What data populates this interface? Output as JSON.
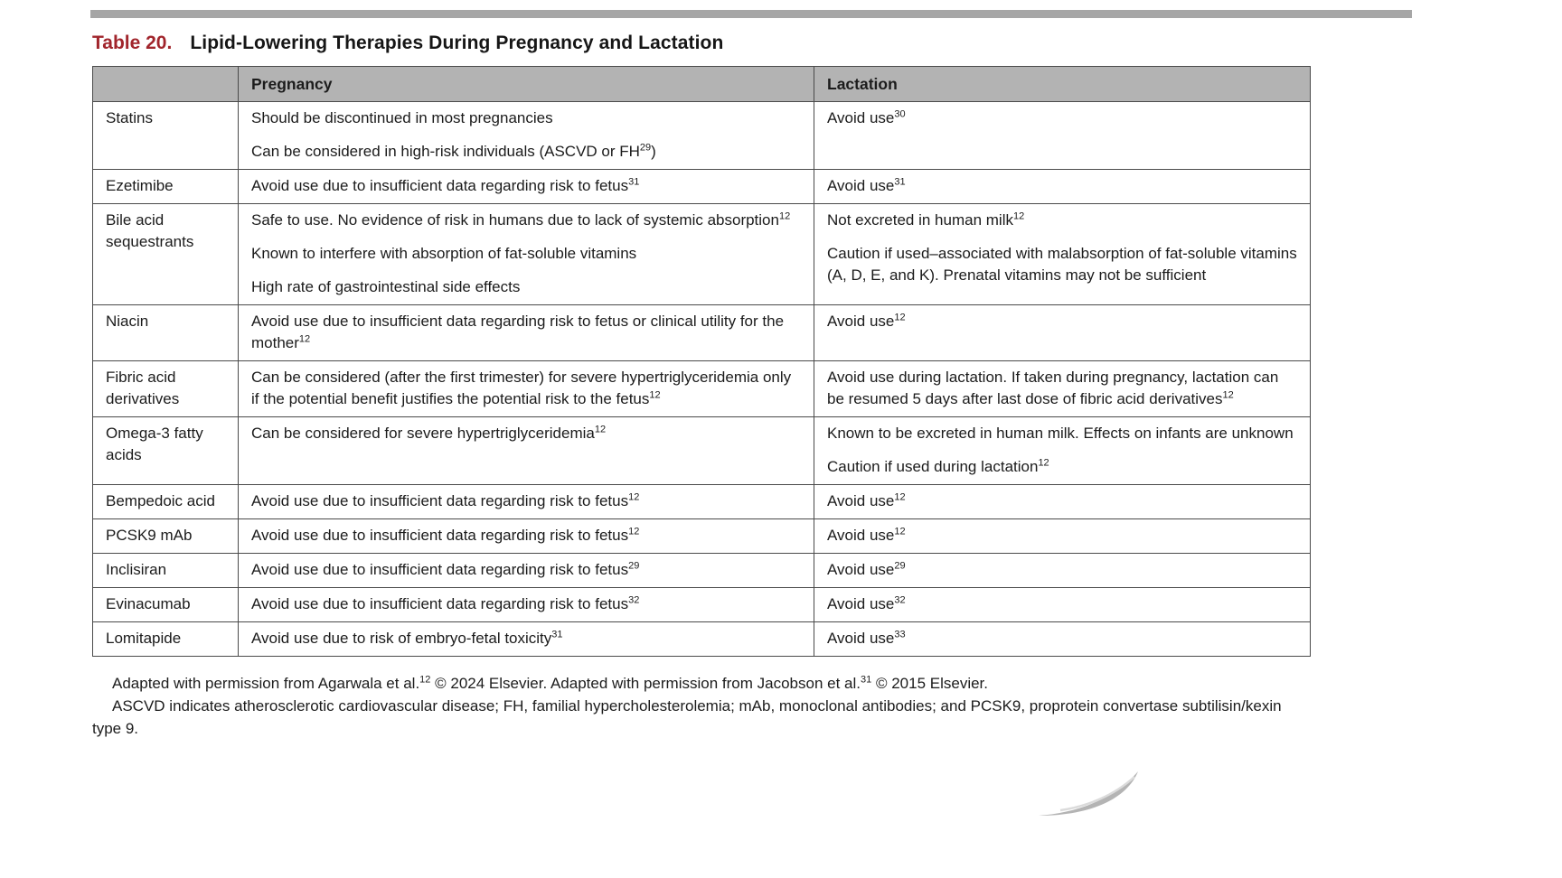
{
  "page": {
    "table_label": "Table 20.",
    "title": "Lipid-Lowering Therapies During Pregnancy and Lactation"
  },
  "colors": {
    "accent_red": "#A1252C",
    "header_bg": "#B3B3B3",
    "top_rule_gray": "#A6A6A6"
  },
  "table": {
    "columns": [
      "",
      "Pregnancy",
      "Lactation"
    ],
    "rows": [
      {
        "therapy": "Statins",
        "pregnancy": [
          [
            {
              "t": "Should be discontinued in most pregnancies"
            }
          ],
          [
            {
              "t": "Can be considered in high-risk individuals (ASCVD or FH"
            },
            {
              "s": "29"
            },
            {
              "t": ")"
            }
          ]
        ],
        "lactation": [
          [
            {
              "t": "Avoid use"
            },
            {
              "s": "30"
            }
          ]
        ]
      },
      {
        "therapy": "Ezetimibe",
        "pregnancy": [
          [
            {
              "t": "Avoid use due to insufficient data regarding risk to fetus"
            },
            {
              "s": "31"
            }
          ]
        ],
        "lactation": [
          [
            {
              "t": "Avoid use"
            },
            {
              "s": "31"
            }
          ]
        ]
      },
      {
        "therapy": "Bile acid sequestrants",
        "pregnancy": [
          [
            {
              "t": "Safe to use. No evidence of risk in humans due to lack of systemic absorption"
            },
            {
              "s": "12"
            }
          ],
          [
            {
              "t": "Known to interfere with absorption of fat-soluble vitamins"
            }
          ],
          [
            {
              "t": "High rate of gastrointestinal side effects"
            }
          ]
        ],
        "lactation": [
          [
            {
              "t": "Not excreted in human milk"
            },
            {
              "s": "12"
            }
          ],
          [
            {
              "t": "Caution if used–associated with malabsorption of fat-soluble vitamins (A, D, E, and K). Prenatal vitamins may not be sufficient"
            }
          ]
        ]
      },
      {
        "therapy": "Niacin",
        "pregnancy": [
          [
            {
              "t": "Avoid use due to insufficient data regarding risk to fetus or clinical utility for the mother"
            },
            {
              "s": "12"
            }
          ]
        ],
        "lactation": [
          [
            {
              "t": "Avoid use"
            },
            {
              "s": "12"
            }
          ]
        ]
      },
      {
        "therapy": "Fibric acid derivatives",
        "pregnancy": [
          [
            {
              "t": "Can be considered (after the first trimester) for severe hypertriglyceridemia only if the potential benefit justifies the potential risk to the fetus"
            },
            {
              "s": "12"
            }
          ]
        ],
        "lactation": [
          [
            {
              "t": "Avoid use during lactation. If taken during pregnancy, lactation can be resumed 5 days after last dose of fibric acid derivatives"
            },
            {
              "s": "12"
            }
          ]
        ]
      },
      {
        "therapy": "Omega-3 fatty acids",
        "pregnancy": [
          [
            {
              "t": "Can be considered for severe hypertriglyceridemia"
            },
            {
              "s": "12"
            }
          ]
        ],
        "lactation": [
          [
            {
              "t": "Known to be excreted in human milk. Effects on infants are unknown"
            }
          ],
          [
            {
              "t": "Caution if used during lactation"
            },
            {
              "s": "12"
            }
          ]
        ]
      },
      {
        "therapy": "Bempedoic acid",
        "pregnancy": [
          [
            {
              "t": "Avoid use due to insufficient data regarding risk to fetus"
            },
            {
              "s": "12"
            }
          ]
        ],
        "lactation": [
          [
            {
              "t": "Avoid use"
            },
            {
              "s": "12"
            }
          ]
        ]
      },
      {
        "therapy": "PCSK9 mAb",
        "pregnancy": [
          [
            {
              "t": "Avoid use due to insufficient data regarding risk to fetus"
            },
            {
              "s": "12"
            }
          ]
        ],
        "lactation": [
          [
            {
              "t": "Avoid use"
            },
            {
              "s": "12"
            }
          ]
        ]
      },
      {
        "therapy": "Inclisiran",
        "pregnancy": [
          [
            {
              "t": "Avoid use due to insufficient data regarding risk to fetus"
            },
            {
              "s": "29"
            }
          ]
        ],
        "lactation": [
          [
            {
              "t": "Avoid use"
            },
            {
              "s": "29"
            }
          ]
        ]
      },
      {
        "therapy": "Evinacumab",
        "pregnancy": [
          [
            {
              "t": "Avoid use due to insufficient data regarding risk to fetus"
            },
            {
              "s": "32"
            }
          ]
        ],
        "lactation": [
          [
            {
              "t": "Avoid use"
            },
            {
              "s": "32"
            }
          ]
        ]
      },
      {
        "therapy": "Lomitapide",
        "pregnancy": [
          [
            {
              "t": "Avoid use due to risk of embryo-fetal toxicity"
            },
            {
              "s": "31"
            }
          ]
        ],
        "lactation": [
          [
            {
              "t": "Avoid use"
            },
            {
              "s": "33"
            }
          ]
        ]
      }
    ]
  },
  "footnotes": [
    [
      {
        "t": "Adapted with permission from Agarwala et al."
      },
      {
        "s": "12"
      },
      {
        "t": " © 2024 Elsevier. Adapted with permission from Jacobson et al."
      },
      {
        "s": "31"
      },
      {
        "t": " © 2015 Elsevier."
      }
    ],
    [
      {
        "t": "ASCVD indicates atherosclerotic cardiovascular disease; FH, familial hypercholesterolemia; mAb, monoclonal antibodies; and PCSK9, proprotein convertase subtilisin/kexin type 9."
      }
    ]
  ]
}
